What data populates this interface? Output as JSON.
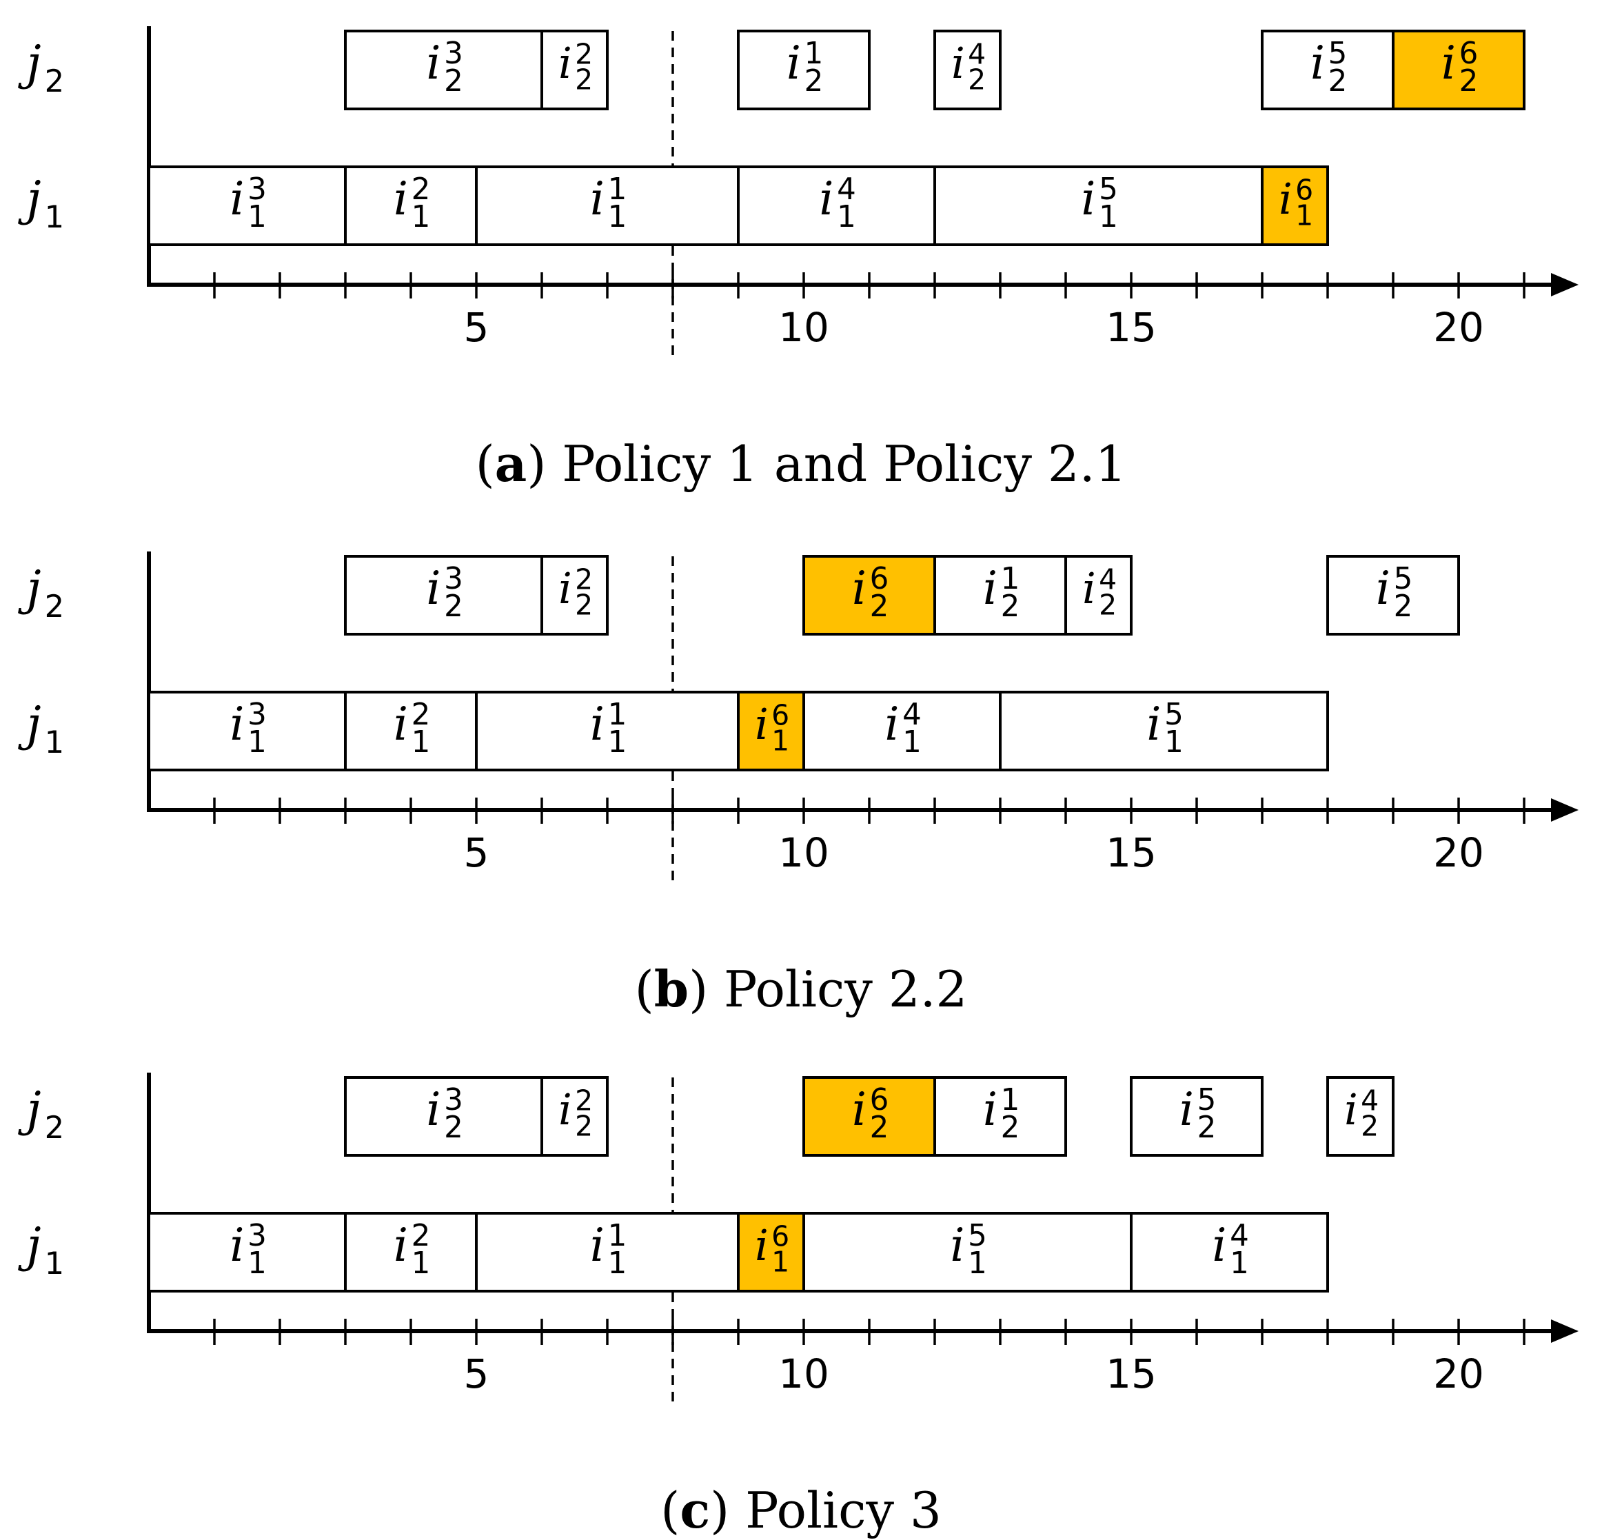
{
  "panels": [
    {
      "caption_letter": "a",
      "caption_text": "Policy 1 and Policy 2.1",
      "rows": [
        {
          "machine": "j",
          "machine_sub": "2",
          "tasks": [
            {
              "label": "i",
              "sub": "2",
              "sup": "3",
              "start": 3,
              "end": 6,
              "highlight": false
            },
            {
              "label": "i",
              "sub": "2",
              "sup": "2",
              "start": 6,
              "end": 7,
              "highlight": false
            },
            {
              "label": "i",
              "sub": "2",
              "sup": "1",
              "start": 9,
              "end": 11,
              "highlight": false
            },
            {
              "label": "i",
              "sub": "2",
              "sup": "4",
              "start": 12,
              "end": 13,
              "highlight": false
            },
            {
              "label": "i",
              "sub": "2",
              "sup": "5",
              "start": 17,
              "end": 19,
              "highlight": false
            },
            {
              "label": "i",
              "sub": "2",
              "sup": "6",
              "start": 19,
              "end": 21,
              "highlight": true
            }
          ]
        },
        {
          "machine": "j",
          "machine_sub": "1",
          "tasks": [
            {
              "label": "i",
              "sub": "1",
              "sup": "3",
              "start": 0,
              "end": 3,
              "highlight": false
            },
            {
              "label": "i",
              "sub": "1",
              "sup": "2",
              "start": 3,
              "end": 5,
              "highlight": false
            },
            {
              "label": "i",
              "sub": "1",
              "sup": "1",
              "start": 5,
              "end": 9,
              "highlight": false
            },
            {
              "label": "i",
              "sub": "1",
              "sup": "4",
              "start": 9,
              "end": 12,
              "highlight": false
            },
            {
              "label": "i",
              "sub": "1",
              "sup": "5",
              "start": 12,
              "end": 17,
              "highlight": false
            },
            {
              "label": "i",
              "sub": "1",
              "sup": "6",
              "start": 17,
              "end": 18,
              "highlight": true
            }
          ]
        }
      ]
    },
    {
      "caption_letter": "b",
      "caption_text": "Policy 2.2",
      "rows": [
        {
          "machine": "j",
          "machine_sub": "2",
          "tasks": [
            {
              "label": "i",
              "sub": "2",
              "sup": "3",
              "start": 3,
              "end": 6,
              "highlight": false
            },
            {
              "label": "i",
              "sub": "2",
              "sup": "2",
              "start": 6,
              "end": 7,
              "highlight": false
            },
            {
              "label": "i",
              "sub": "2",
              "sup": "6",
              "start": 10,
              "end": 12,
              "highlight": true
            },
            {
              "label": "i",
              "sub": "2",
              "sup": "1",
              "start": 12,
              "end": 14,
              "highlight": false
            },
            {
              "label": "i",
              "sub": "2",
              "sup": "4",
              "start": 14,
              "end": 15,
              "highlight": false
            },
            {
              "label": "i",
              "sub": "2",
              "sup": "5",
              "start": 18,
              "end": 20,
              "highlight": false
            }
          ]
        },
        {
          "machine": "j",
          "machine_sub": "1",
          "tasks": [
            {
              "label": "i",
              "sub": "1",
              "sup": "3",
              "start": 0,
              "end": 3,
              "highlight": false
            },
            {
              "label": "i",
              "sub": "1",
              "sup": "2",
              "start": 3,
              "end": 5,
              "highlight": false
            },
            {
              "label": "i",
              "sub": "1",
              "sup": "1",
              "start": 5,
              "end": 9,
              "highlight": false
            },
            {
              "label": "i",
              "sub": "1",
              "sup": "6",
              "start": 9,
              "end": 10,
              "highlight": true
            },
            {
              "label": "i",
              "sub": "1",
              "sup": "4",
              "start": 10,
              "end": 13,
              "highlight": false
            },
            {
              "label": "i",
              "sub": "1",
              "sup": "5",
              "start": 13,
              "end": 18,
              "highlight": false
            }
          ]
        }
      ]
    },
    {
      "caption_letter": "c",
      "caption_text": "Policy 3",
      "rows": [
        {
          "machine": "j",
          "machine_sub": "2",
          "tasks": [
            {
              "label": "i",
              "sub": "2",
              "sup": "3",
              "start": 3,
              "end": 6,
              "highlight": false
            },
            {
              "label": "i",
              "sub": "2",
              "sup": "2",
              "start": 6,
              "end": 7,
              "highlight": false
            },
            {
              "label": "i",
              "sub": "2",
              "sup": "6",
              "start": 10,
              "end": 12,
              "highlight": true
            },
            {
              "label": "i",
              "sub": "2",
              "sup": "1",
              "start": 12,
              "end": 14,
              "highlight": false
            },
            {
              "label": "i",
              "sub": "2",
              "sup": "5",
              "start": 15,
              "end": 17,
              "highlight": false
            },
            {
              "label": "i",
              "sub": "2",
              "sup": "4",
              "start": 18,
              "end": 19,
              "highlight": false
            }
          ]
        },
        {
          "machine": "j",
          "machine_sub": "1",
          "tasks": [
            {
              "label": "i",
              "sub": "1",
              "sup": "3",
              "start": 0,
              "end": 3,
              "highlight": false
            },
            {
              "label": "i",
              "sub": "1",
              "sup": "2",
              "start": 3,
              "end": 5,
              "highlight": false
            },
            {
              "label": "i",
              "sub": "1",
              "sup": "1",
              "start": 5,
              "end": 9,
              "highlight": false
            },
            {
              "label": "i",
              "sub": "1",
              "sup": "6",
              "start": 9,
              "end": 10,
              "highlight": true
            },
            {
              "label": "i",
              "sub": "1",
              "sup": "5",
              "start": 10,
              "end": 15,
              "highlight": false
            },
            {
              "label": "i",
              "sub": "1",
              "sup": "4",
              "start": 15,
              "end": 18,
              "highlight": false
            }
          ]
        }
      ]
    }
  ],
  "axis": {
    "tick_min": 1,
    "tick_max": 21,
    "tick_labels": [
      "5",
      "10",
      "15",
      "20"
    ],
    "tick_label_values": [
      5,
      10,
      15,
      20
    ],
    "dashed_marker": 8
  },
  "colors": {
    "highlight": "#FFC000",
    "stroke": "#000000",
    "box_fill": "#FFFFFF"
  }
}
